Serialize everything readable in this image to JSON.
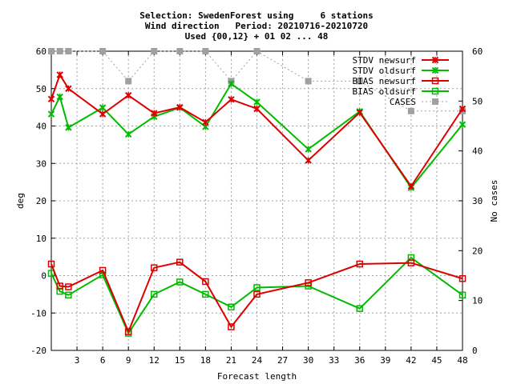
{
  "chart_data": {
    "type": "line",
    "title_lines": [
      "Selection: SwedenForest using     6 stations",
      "Wind direction   Period: 20210716-20210720",
      "Used {00,12} + 01 02 ... 48"
    ],
    "xlabel": "Forecast length",
    "ylabel": "deg",
    "y2label": "No cases",
    "xlim": [
      0,
      48
    ],
    "ylim": [
      -20,
      60
    ],
    "y2lim": [
      0,
      60
    ],
    "xticks": [
      3,
      6,
      9,
      12,
      15,
      18,
      21,
      24,
      27,
      30,
      33,
      36,
      39,
      42,
      45,
      48
    ],
    "yticks": [
      -20,
      -10,
      0,
      10,
      20,
      30,
      40,
      50,
      60
    ],
    "y2ticks": [
      0,
      10,
      20,
      30,
      40,
      50,
      60
    ],
    "grid": true,
    "legend_position": "top-right",
    "x": [
      0,
      1,
      2,
      6,
      9,
      12,
      15,
      18,
      21,
      24,
      30,
      36,
      42,
      48
    ],
    "series": [
      {
        "name": "STDV newsurf",
        "axis": "y1",
        "marker": "x",
        "color": "#dd0000",
        "values": [
          47.2,
          53.7,
          50.0,
          43.2,
          48.2,
          43.4,
          45.0,
          41.0,
          47.1,
          44.6,
          30.8,
          43.6,
          23.9,
          44.6
        ]
      },
      {
        "name": "STDV oldsurf",
        "axis": "y1",
        "marker": "x",
        "color": "#00bb00",
        "values": [
          43.2,
          47.8,
          39.6,
          44.9,
          37.8,
          42.5,
          44.9,
          39.8,
          51.3,
          46.4,
          33.8,
          43.9,
          23.5,
          40.4
        ]
      },
      {
        "name": "BIAS newsurf",
        "axis": "y1",
        "marker": "square",
        "color": "#dd0000",
        "values": [
          3.1,
          -2.8,
          -3.0,
          1.4,
          -15.0,
          2.1,
          3.6,
          -1.6,
          -13.7,
          -5.0,
          -1.9,
          3.1,
          3.4,
          -0.8
        ]
      },
      {
        "name": "BIAS oldsurf",
        "axis": "y1",
        "marker": "square",
        "color": "#00bb00",
        "values": [
          0.6,
          -4.2,
          -5.2,
          0.2,
          -15.4,
          -5.0,
          -1.7,
          -5.0,
          -8.4,
          -3.2,
          -2.8,
          -8.8,
          4.8,
          -5.2
        ]
      },
      {
        "name": "CASES",
        "axis": "y2",
        "marker": "square",
        "color": "#a0a0a0",
        "dashed": true,
        "values": [
          60,
          60,
          60,
          60,
          54,
          60,
          60,
          60,
          54,
          60,
          54,
          54,
          48,
          48
        ]
      }
    ]
  }
}
